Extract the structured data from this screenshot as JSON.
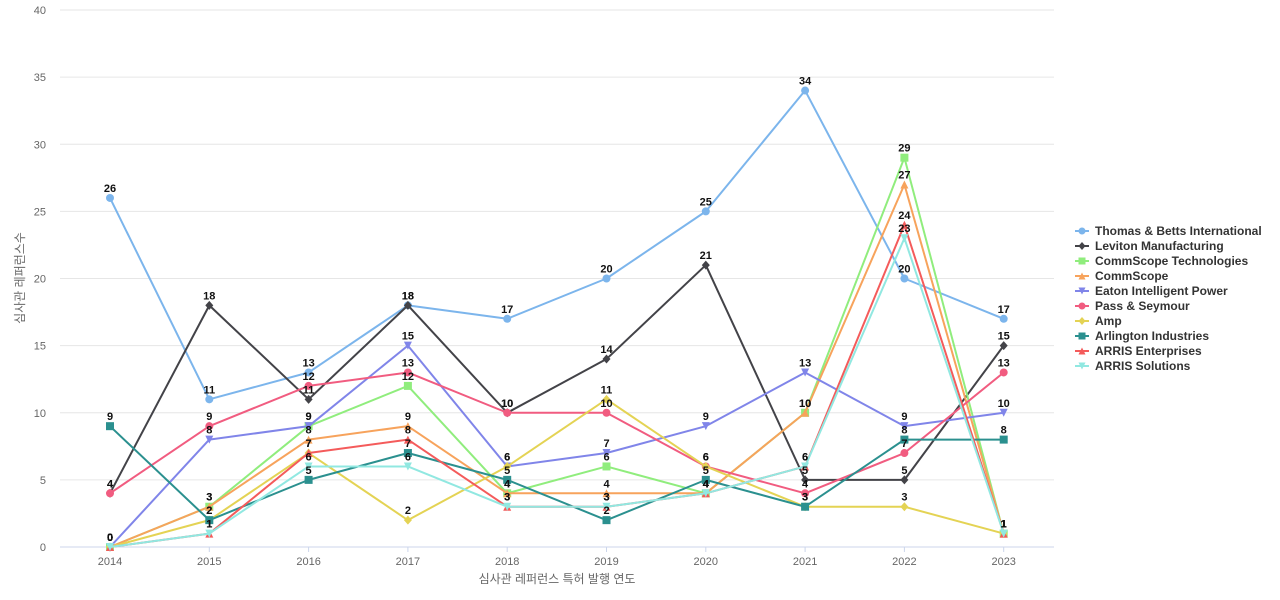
{
  "chart_data": {
    "type": "line",
    "title": "",
    "xlabel": "심사관 레퍼런스 특허 발행 연도",
    "ylabel": "심사관 레퍼런스수",
    "x": [
      "2014",
      "2015",
      "2016",
      "2017",
      "2018",
      "2019",
      "2020",
      "2021",
      "2022",
      "2023"
    ],
    "ylim": [
      0,
      40
    ],
    "yticks": [
      0,
      5,
      10,
      15,
      20,
      25,
      30,
      35,
      40
    ],
    "grid": true,
    "legend_position": "right",
    "series": [
      {
        "name": "Thomas & Betts International",
        "color": "#7cb5ec",
        "marker": "circle",
        "values": [
          26,
          11,
          13,
          18,
          17,
          20,
          25,
          34,
          20,
          17
        ]
      },
      {
        "name": "Leviton Manufacturing",
        "color": "#434348",
        "marker": "diamond",
        "values": [
          4,
          18,
          11,
          18,
          10,
          14,
          21,
          5,
          5,
          15
        ]
      },
      {
        "name": "CommScope Technologies",
        "color": "#90ed7d",
        "marker": "square",
        "values": [
          0,
          3,
          9,
          12,
          4,
          6,
          4,
          10,
          29,
          1
        ]
      },
      {
        "name": "CommScope",
        "color": "#f7a35c",
        "marker": "triangle",
        "values": [
          0,
          3,
          8,
          9,
          4,
          4,
          4,
          10,
          27,
          1
        ]
      },
      {
        "name": "Eaton Intelligent Power",
        "color": "#8085e9",
        "marker": "triangle-down",
        "values": [
          0,
          8,
          9,
          15,
          6,
          7,
          9,
          13,
          9,
          10
        ]
      },
      {
        "name": "Pass & Seymour",
        "color": "#f15c80",
        "marker": "circle",
        "values": [
          4,
          9,
          12,
          13,
          10,
          10,
          6,
          4,
          7,
          13
        ]
      },
      {
        "name": "Amp",
        "color": "#e4d354",
        "marker": "diamond",
        "values": [
          0,
          2,
          7,
          2,
          6,
          11,
          6,
          3,
          3,
          1
        ]
      },
      {
        "name": "Arlington Industries",
        "color": "#2b908f",
        "marker": "square",
        "values": [
          9,
          2,
          5,
          7,
          5,
          2,
          5,
          3,
          8,
          8
        ]
      },
      {
        "name": "ARRIS Enterprises",
        "color": "#f45b5b",
        "marker": "triangle",
        "values": [
          0,
          1,
          7,
          8,
          3,
          3,
          4,
          6,
          24,
          1
        ]
      },
      {
        "name": "ARRIS Solutions",
        "color": "#91e8e1",
        "marker": "triangle-down",
        "values": [
          0,
          1,
          6,
          6,
          3,
          3,
          4,
          6,
          23,
          1
        ]
      }
    ]
  }
}
